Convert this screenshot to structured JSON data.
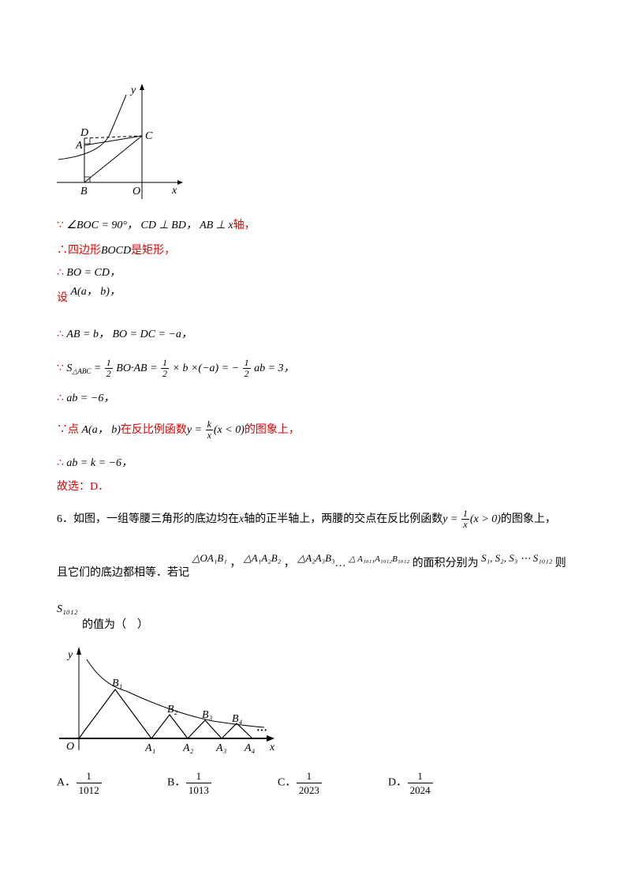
{
  "figure1": {
    "labels": {
      "y": "y",
      "x": "x",
      "d": "D",
      "a": "A",
      "c": "C",
      "b": "B",
      "o": "O"
    }
  },
  "solution": {
    "line1": {
      "sym": "∵",
      "body": "∠BOC = 90°， CD ⊥ BD， AB ⊥ x",
      "tail": "轴，"
    },
    "line2": {
      "sym": "∴",
      "pre": "四边形",
      "mid": "BOCD",
      "post": "是矩形，"
    },
    "line3": {
      "sym": "∴",
      "body": "BO = CD，"
    },
    "line4": {
      "pre": "设",
      "body": "A(a， b)，"
    },
    "line5": {
      "sym": "∴",
      "body": "AB = b， BO = DC = −a，"
    },
    "line6": {
      "sym": "∵",
      "s": "S",
      "sub": "△ABC",
      "eq1": " = ",
      "f1_num": "1",
      "f1_den": "2",
      "mid": "BO·AB = ",
      "f2_num": "1",
      "f2_den": "2",
      "mid2": "× b ×(−a) = −",
      "f3_num": "1",
      "f3_den": "2",
      "end": "ab = 3，"
    },
    "line7": {
      "sym": "∴",
      "body": "ab = −6，"
    },
    "line8": {
      "sym": "∵",
      "pre": "点",
      "pt": "A(a， b)",
      "mid": "在反比例函数",
      "y": "y = ",
      "k": "k",
      "x": "x",
      "cond": "(x < 0)",
      "post": "的图象上，"
    },
    "line9": {
      "sym": "∴",
      "body": "ab = k = −6，"
    },
    "line10": {
      "body": "故选：D．"
    }
  },
  "question6": {
    "line1_pre": "6．如图，一组等腰三角形的底边均在",
    "line1_x": "x",
    "line1_mid": "轴的正半轴上，两腰的交点在反比例函数",
    "line1_y": "y = ",
    "line1_num": "1",
    "line1_den": "x",
    "line1_cond": "(x > 0)",
    "line1_post": "的图象上，",
    "line2_pre": "且它们的底边都相等．若记",
    "t1": "△OA₁B₁",
    "c1": "，",
    "t2": "△A₁A₂B₂",
    "c2": "，",
    "t3": "△A₂A₃B₃",
    "dots": "…",
    "t4": "△ A₁₀₁₁A₁₀₁₂B₁₀₁₂",
    "line2_mid": "的面积分别为",
    "slist": "S₁, S₂, S₃ ⋯ S₁₀₁₂",
    "line2_post": "则",
    "line3_s": "S₁₀₁₂",
    "line3_post": "的值为（　）"
  },
  "figure2": {
    "labels": {
      "y": "y",
      "x": "x",
      "o": "O",
      "b1": "B₁",
      "b2": "B₂",
      "b3": "B₃",
      "b4": "B₄",
      "a1": "A₁",
      "a2": "A₂",
      "a3": "A₃",
      "a4": "A₄",
      "dots": "···"
    }
  },
  "options": [
    {
      "letter": "A．",
      "num": "1",
      "den": "1012"
    },
    {
      "letter": "B．",
      "num": "1",
      "den": "1013"
    },
    {
      "letter": "C．",
      "num": "1",
      "den": "2023"
    },
    {
      "letter": "D．",
      "num": "1",
      "den": "2024"
    }
  ]
}
